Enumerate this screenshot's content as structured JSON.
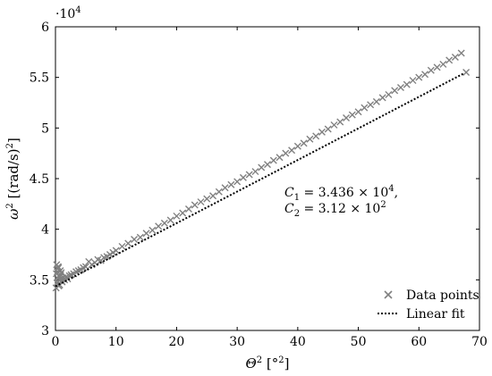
{
  "chart_data": {
    "type": "scatter",
    "xlabel": {
      "main": "Θ",
      "sup": "2",
      "unit": " [°",
      "unit_sup": "2",
      "unit_end": "]"
    },
    "ylabel": {
      "main": "ω",
      "sup": "2",
      "unit": " [(rad/s)",
      "unit_sup": "2",
      "unit_end": "]"
    },
    "xlim": [
      0,
      70
    ],
    "ylim": [
      30000,
      60000
    ],
    "x_ticks": [
      0,
      10,
      20,
      30,
      40,
      50,
      60,
      70
    ],
    "x_tick_labels": [
      "0",
      "10",
      "20",
      "30",
      "40",
      "50",
      "60",
      "70"
    ],
    "y_ticks": [
      30000,
      35000,
      40000,
      45000,
      50000,
      55000,
      60000
    ],
    "y_tick_labels": [
      "3",
      "3.5",
      "4",
      "4.5",
      "5",
      "5.5",
      "6"
    ],
    "y_multiplier": {
      "base": "·10",
      "exp": "4"
    },
    "grid": false,
    "legend_position": "bottom-right",
    "series": [
      {
        "name": "Data points",
        "kind": "scatter",
        "marker": "x",
        "color": "#808080",
        "x": [
          0.1,
          0.2,
          0.3,
          0.4,
          0.5,
          0.6,
          0.7,
          0.8,
          0.9,
          1.0,
          0.15,
          0.35,
          0.55,
          0.75,
          0.95,
          0.25,
          0.45,
          0.65,
          0.85,
          1.1,
          1.3,
          1.5,
          1.8,
          2.0,
          2.3,
          2.6,
          3.0,
          3.4,
          3.8,
          4.2,
          4.6,
          5.0,
          5.5,
          6.0,
          6.5,
          7.0,
          7.5,
          8.0,
          8.5,
          9.0,
          9.5,
          10.0,
          11.0,
          12.0,
          13.0,
          14.0,
          15.0,
          16.0,
          17.0,
          18.0,
          19.0,
          20.0,
          21.0,
          22.0,
          23.0,
          24.0,
          25.0,
          26.0,
          27.0,
          28.0,
          29.0,
          30.0,
          31.0,
          32.0,
          33.0,
          34.0,
          35.0,
          36.0,
          37.0,
          38.0,
          39.0,
          40.0,
          41.0,
          42.0,
          43.0,
          44.0,
          45.0,
          46.0,
          47.0,
          48.0,
          49.0,
          50.0,
          51.0,
          52.0,
          53.0,
          54.0,
          55.0,
          56.0,
          57.0,
          58.0,
          59.0,
          60.0,
          61.0,
          62.0,
          63.0,
          64.0,
          65.0,
          66.0,
          67.0,
          67.8
        ],
        "y": [
          34200,
          36500,
          35800,
          34800,
          36200,
          35400,
          34500,
          35900,
          35100,
          34900,
          35600,
          36100,
          34400,
          35300,
          35700,
          34700,
          36300,
          35000,
          35500,
          34800,
          35200,
          35000,
          35300,
          35100,
          35400,
          35500,
          35600,
          35800,
          35900,
          36000,
          36200,
          36300,
          36800,
          36500,
          36700,
          37000,
          36900,
          37200,
          37300,
          37500,
          37700,
          37900,
          38300,
          38600,
          39000,
          39200,
          39600,
          39900,
          40300,
          40600,
          40900,
          41300,
          41600,
          42000,
          42400,
          42700,
          43000,
          43300,
          43700,
          44100,
          44400,
          44700,
          45100,
          45400,
          45700,
          46100,
          46400,
          46800,
          47100,
          47500,
          47800,
          48200,
          48500,
          48900,
          49200,
          49600,
          49900,
          50300,
          50600,
          51000,
          51300,
          51600,
          52000,
          52300,
          52600,
          53000,
          53300,
          53700,
          54000,
          54300,
          54700,
          55000,
          55300,
          55700,
          56000,
          56300,
          56700,
          57000,
          57400,
          55500
        ]
      },
      {
        "name": "Linear fit",
        "kind": "line",
        "style": "dotted",
        "color": "#000000",
        "x": [
          0,
          67.5
        ],
        "y": [
          34360,
          55420
        ]
      }
    ],
    "annotation": {
      "line1": {
        "main": "C",
        "sub": "1",
        "eq": " = 3.436 × 10",
        "sup": "4",
        "tail": ","
      },
      "line2": {
        "main": "C",
        "sub": "2",
        "eq": " = 3.12 × 10",
        "sup": "2",
        "tail": ""
      }
    }
  }
}
